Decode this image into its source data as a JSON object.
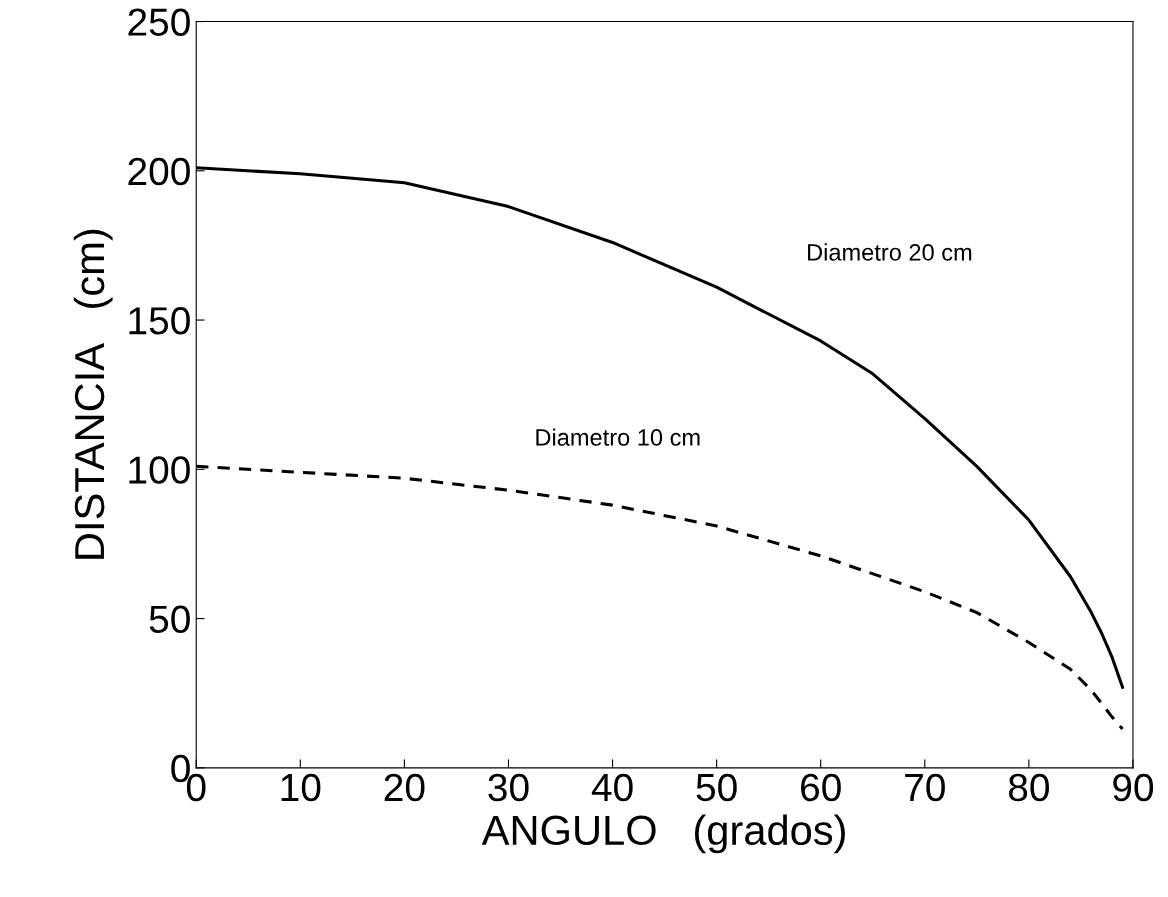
{
  "chart_data": {
    "type": "line",
    "xlabel": "ANGULO   (grados)",
    "ylabel": "DISTANCIA   (cm)",
    "xlim": [
      0,
      90
    ],
    "ylim": [
      0,
      250
    ],
    "xticks": [
      0,
      10,
      20,
      30,
      40,
      50,
      60,
      70,
      80,
      90
    ],
    "yticks": [
      0,
      50,
      100,
      150,
      200,
      250
    ],
    "grid": false,
    "legend": false,
    "series": [
      {
        "name": "Diametro 20 cm",
        "color": "#000000",
        "line_style": "solid",
        "x": [
          0,
          10,
          20,
          30,
          40,
          50,
          60,
          65,
          70,
          75,
          80,
          84,
          86,
          87,
          88,
          89
        ],
        "values": [
          201,
          199,
          196,
          188,
          176,
          161,
          143,
          132,
          117,
          101,
          83,
          64,
          52,
          45,
          37,
          27
        ]
      },
      {
        "name": "Diametro 10 cm",
        "color": "#000000",
        "line_style": "dashed",
        "x": [
          0,
          10,
          20,
          30,
          40,
          50,
          60,
          70,
          75,
          80,
          84,
          86,
          88,
          89
        ],
        "values": [
          101,
          99,
          97,
          93,
          88,
          81,
          71,
          59,
          52,
          42,
          33,
          26,
          17,
          13
        ]
      }
    ]
  }
}
